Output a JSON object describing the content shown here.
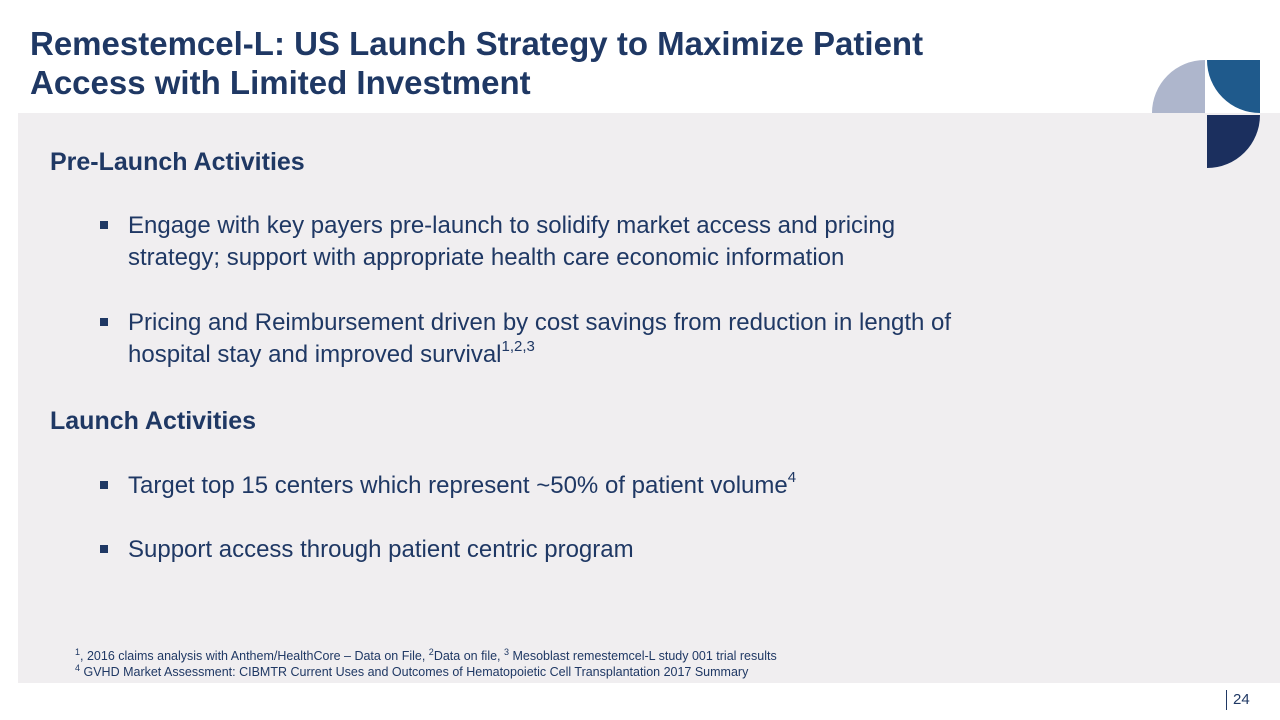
{
  "title": {
    "line1": "Remestemcel-L: US Launch Strategy to Maximize Patient",
    "line2": "Access with Limited Investment"
  },
  "sections": [
    {
      "heading": "Pre-Launch Activities",
      "bullets": [
        {
          "line1": "Engage with key payers pre-launch to solidify market access and pricing",
          "line2": "strategy; support with appropriate health care economic information"
        },
        {
          "line1": "Pricing and Reimbursement driven by cost savings from reduction in length of",
          "line2": "hospital stay and improved survival",
          "sup": "1,2,3"
        }
      ]
    },
    {
      "heading": "Launch Activities",
      "bullets": [
        {
          "text": "Target top 15 centers which represent ~50% of patient volume",
          "sup": "4"
        },
        {
          "text": "Support access through patient centric program"
        }
      ]
    }
  ],
  "footnotes": {
    "line1": {
      "s1": "1",
      "t1": ", 2016 claims analysis with Anthem/HealthCore – Data on File, ",
      "s2": "2",
      "t2": "Data on file, ",
      "s3": "3",
      "t3": " Mesoblast remestemcel-L study 001 trial results"
    },
    "line2": {
      "s1": "4",
      "t1": " GVHD Market Assessment: CIBMTR Current Uses and Outcomes of Hematopoietic Cell Transplantation 2017 Summary"
    }
  },
  "page_number": "24",
  "logo": {
    "name": "mesoblast-logo-icon",
    "colors": {
      "light": "#AEB6CC",
      "mid": "#1F5A8C",
      "dark": "#1B2F5E"
    }
  },
  "colors": {
    "title": "#1F3864",
    "panel": "#F0EEF0"
  }
}
